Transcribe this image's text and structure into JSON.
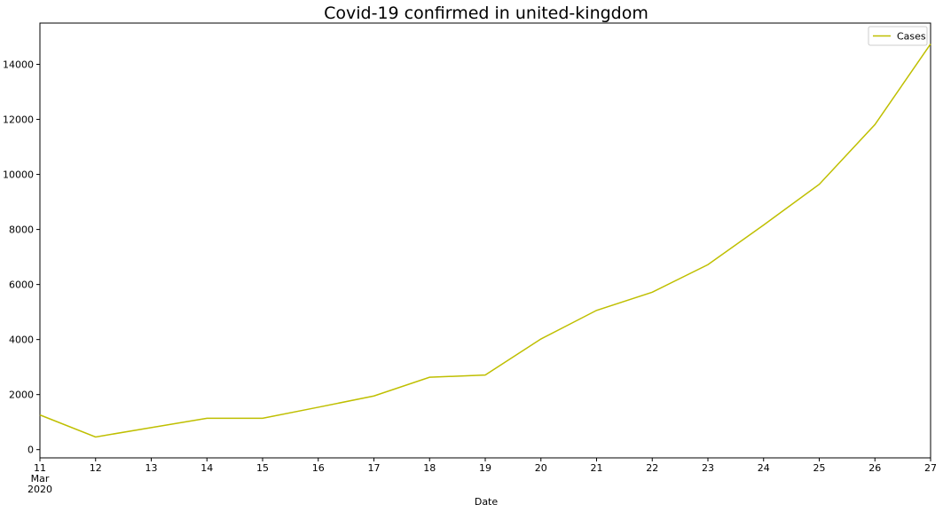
{
  "chart_data": {
    "type": "line",
    "title": "Covid-19 confirmed in united-kingdom",
    "xlabel": "Date",
    "ylabel": "",
    "x": [
      "2020-03-11",
      "2020-03-12",
      "2020-03-13",
      "2020-03-14",
      "2020-03-15",
      "2020-03-16",
      "2020-03-17",
      "2020-03-18",
      "2020-03-19",
      "2020-03-20",
      "2020-03-21",
      "2020-03-22",
      "2020-03-23",
      "2020-03-24",
      "2020-03-25",
      "2020-03-26",
      "2020-03-27"
    ],
    "x_tick_labels": [
      "11",
      "12",
      "13",
      "14",
      "15",
      "16",
      "17",
      "18",
      "19",
      "20",
      "21",
      "22",
      "23",
      "24",
      "25",
      "26",
      "27"
    ],
    "x_tick_sublabels": [
      "Mar",
      "2020"
    ],
    "series": [
      {
        "name": "Cases",
        "color": "#bfbf00",
        "values": [
          1260,
          460,
          800,
          1140,
          1140,
          1540,
          1950,
          2630,
          2710,
          4020,
          5060,
          5720,
          6720,
          8160,
          9640,
          11810,
          14740
        ]
      }
    ],
    "ylim": [
      -300,
      15500
    ],
    "yticks": [
      0,
      2000,
      4000,
      6000,
      8000,
      10000,
      12000,
      14000
    ],
    "grid": false,
    "legend": "top-right"
  }
}
